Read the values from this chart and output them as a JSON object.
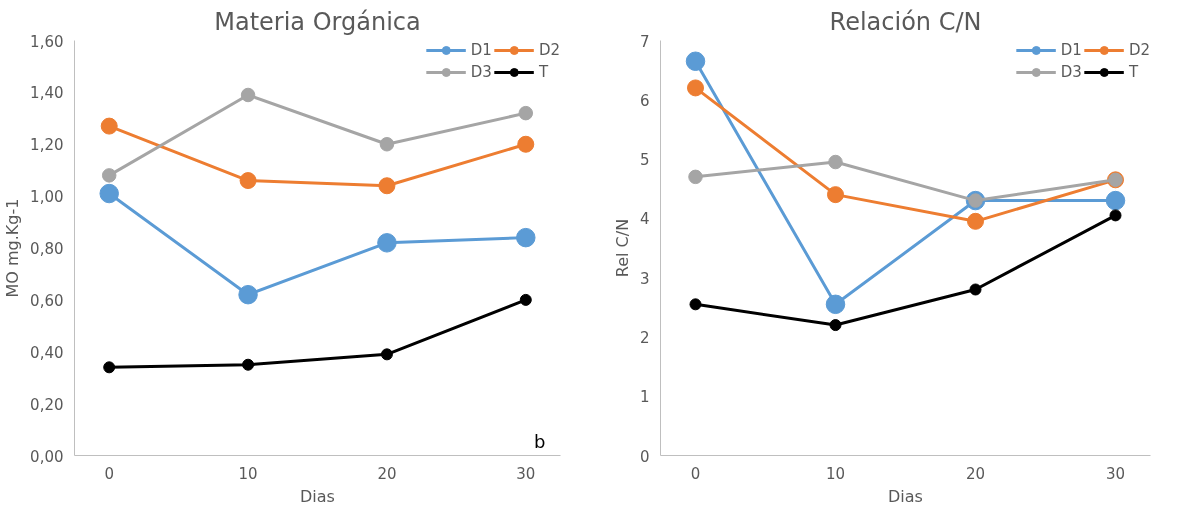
{
  "chart_data": [
    {
      "type": "line",
      "title": "Materia Orgánica",
      "ylabel": "MO mg.Kg-1",
      "xlabel": "Dias",
      "categories": [
        "0",
        "10",
        "20",
        "30"
      ],
      "series": [
        {
          "name": "D1",
          "color": "#5b9bd5",
          "values": [
            1.01,
            0.62,
            0.82,
            0.84
          ]
        },
        {
          "name": "D2",
          "color": "#ed7d31",
          "values": [
            1.27,
            1.06,
            1.04,
            1.2
          ]
        },
        {
          "name": "D3",
          "color": "#a5a5a5",
          "values": [
            1.08,
            1.39,
            1.2,
            1.32
          ]
        },
        {
          "name": "T",
          "color": "#000000",
          "values": [
            0.34,
            0.35,
            0.39,
            0.6
          ]
        }
      ],
      "ylim": [
        0,
        1.6
      ],
      "yticks": [
        {
          "value": 0,
          "label": "0,00"
        },
        {
          "value": 0.2,
          "label": "0,20"
        },
        {
          "value": 0.4,
          "label": "0,40"
        },
        {
          "value": 0.6,
          "label": "0,60"
        },
        {
          "value": 0.8,
          "label": "0,80"
        },
        {
          "value": 1.0,
          "label": "1,00"
        },
        {
          "value": 1.2,
          "label": "1,20"
        },
        {
          "value": 1.4,
          "label": "1,40"
        },
        {
          "value": 1.6,
          "label": "1,60"
        }
      ],
      "grid": false,
      "legend": "top right",
      "marker": "circle",
      "line_style": "solid",
      "annotations": [
        "b"
      ]
    },
    {
      "type": "line",
      "title": "Relación C/N",
      "ylabel": "Rel C/N",
      "xlabel": "Dias",
      "categories": [
        "0",
        "10",
        "20",
        "30"
      ],
      "series": [
        {
          "name": "D1",
          "color": "#5b9bd5",
          "values": [
            6.65,
            2.55,
            4.3,
            4.3
          ]
        },
        {
          "name": "D2",
          "color": "#ed7d31",
          "values": [
            6.2,
            4.4,
            3.95,
            4.65
          ]
        },
        {
          "name": "D3",
          "color": "#a5a5a5",
          "values": [
            4.7,
            4.95,
            4.3,
            4.65
          ]
        },
        {
          "name": "T",
          "color": "#000000",
          "values": [
            2.55,
            2.2,
            2.8,
            4.05
          ]
        }
      ],
      "ylim": [
        0,
        7
      ],
      "yticks": [
        0,
        1,
        2,
        3,
        4,
        5,
        6,
        7
      ],
      "grid": false,
      "legend": "top right",
      "marker": "circle",
      "line_style": "solid"
    }
  ]
}
